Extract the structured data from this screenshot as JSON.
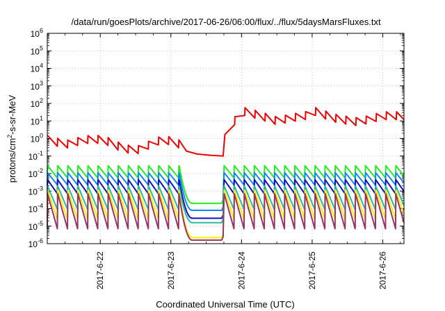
{
  "chart_data": {
    "type": "line",
    "title": "/data/run/goesPlots/archive/2017-06-26/06:00/flux/../flux/5daysMarsFluxes.txt",
    "xlabel": "Coordinated Universal Time (UTC)",
    "ylabel": {
      "prefix": "protons/cm",
      "sup": "2",
      "suffix": "-s-sr-MeV"
    },
    "yscale": "log",
    "ylim_exp": [
      -6,
      6
    ],
    "yticks": [
      {
        "base": "10",
        "exp": "6"
      },
      {
        "base": "10",
        "exp": "5"
      },
      {
        "base": "10",
        "exp": "4"
      },
      {
        "base": "10",
        "exp": "3"
      },
      {
        "base": "10",
        "exp": "2"
      },
      {
        "base": "10",
        "exp": "1"
      },
      {
        "base": "10",
        "exp": "0"
      },
      {
        "base": "10",
        "exp": "-1"
      },
      {
        "base": "10",
        "exp": "-2"
      },
      {
        "base": "10",
        "exp": "-3"
      },
      {
        "base": "10",
        "exp": "-4"
      },
      {
        "base": "10",
        "exp": "-5"
      },
      {
        "base": "10",
        "exp": "-6"
      }
    ],
    "xlim_days": [
      21.25,
      26.3
    ],
    "xticks": [
      {
        "label": "2017-6-22",
        "day": 22
      },
      {
        "label": "2017-6-23",
        "day": 23
      },
      {
        "label": "2017-6-24",
        "day": 24
      },
      {
        "label": "2017-6-25",
        "day": 25
      },
      {
        "label": "2017-6-26",
        "day": 26
      }
    ],
    "grid": true,
    "period_days": 0.143,
    "gap_days": [
      23.12,
      23.75
    ],
    "series": [
      {
        "color": "#ee0000",
        "kind": "red",
        "points": [
          [
            21.25,
            0.9
          ],
          [
            21.5,
            0.45
          ],
          [
            21.7,
            0.7
          ],
          [
            21.9,
            1.0
          ],
          [
            22.1,
            0.7
          ],
          [
            22.3,
            0.3
          ],
          [
            22.5,
            0.2
          ],
          [
            22.7,
            0.45
          ],
          [
            22.85,
            0.8
          ],
          [
            23.0,
            0.75
          ],
          [
            23.2,
            0.35
          ],
          [
            23.4,
            0.15
          ],
          [
            23.55,
            0.11
          ],
          [
            23.74,
            0.1
          ],
          [
            23.76,
            1.0
          ],
          [
            23.85,
            5
          ],
          [
            23.95,
            20
          ],
          [
            24.05,
            35
          ],
          [
            24.3,
            18
          ],
          [
            24.5,
            10
          ],
          [
            24.7,
            15
          ],
          [
            24.9,
            20
          ],
          [
            25.05,
            35
          ],
          [
            25.3,
            15
          ],
          [
            25.6,
            9
          ],
          [
            25.8,
            12
          ],
          [
            26.0,
            20
          ],
          [
            26.3,
            20
          ]
        ],
        "sawtooth_amp_dec": 0.45
      },
      {
        "color": "#22ee22",
        "kind": "band",
        "peak_exp": -1.55,
        "trough_exp": -2.25,
        "gap_min_exp": -3.7,
        "drop_exp": -1.95
      },
      {
        "color": "#1188ee",
        "kind": "band",
        "peak_exp": -1.95,
        "trough_exp": -2.65,
        "gap_min_exp": -4.1,
        "drop_exp": -2.35
      },
      {
        "color": "#1111bb",
        "kind": "band",
        "peak_exp": -2.35,
        "trough_exp": -3.15,
        "gap_min_exp": -4.55,
        "drop_exp": -2.75
      },
      {
        "color": "#22bbaa",
        "kind": "band",
        "peak_exp": -2.7,
        "trough_exp": -4.05,
        "gap_min_exp": -4.8,
        "drop_exp": -3.1
      },
      {
        "color": "#ffee00",
        "kind": "band",
        "peak_exp": -2.95,
        "trough_exp": -4.6,
        "gap_min_exp": -5.65,
        "drop_exp": -3.4
      },
      {
        "color": "#993366",
        "kind": "band",
        "peak_exp": -3.15,
        "trough_exp": -5.15,
        "gap_min_exp": -5.8,
        "drop_exp": -3.6
      }
    ]
  }
}
